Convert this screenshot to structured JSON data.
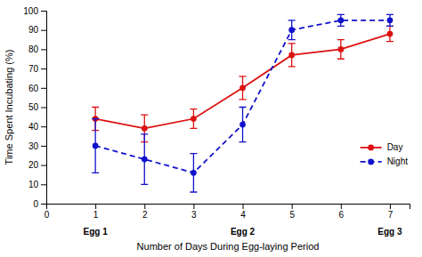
{
  "chart_data": {
    "type": "line",
    "x": [
      1,
      2,
      3,
      4,
      5,
      6,
      7
    ],
    "xlabel": "Number of Days During Egg-laying Period",
    "ylabel": "Time Spent Incubating (%)",
    "xlim": [
      0,
      7.4
    ],
    "ylim": [
      0,
      100
    ],
    "xticks": [
      0,
      1,
      2,
      3,
      4,
      5,
      6,
      7
    ],
    "yticks": [
      0,
      10,
      20,
      30,
      40,
      50,
      60,
      70,
      80,
      90,
      100
    ],
    "series": [
      {
        "name": "Day",
        "color": "#dd1111",
        "line_style": "solid",
        "marker": "circle",
        "values": [
          44,
          39,
          44,
          60,
          77,
          80,
          88
        ],
        "errors": [
          6,
          7,
          5,
          6,
          6,
          5,
          4
        ]
      },
      {
        "name": "Night",
        "color": "#1111cc",
        "line_style": "dashed",
        "marker": "circle",
        "values": [
          30,
          23,
          16,
          41,
          90,
          95,
          95
        ],
        "errors": [
          14,
          13,
          10,
          9,
          5,
          3,
          3
        ]
      }
    ],
    "legend": "lower right",
    "annotations": [
      {
        "text": "Egg 1",
        "x": 1
      },
      {
        "text": "Egg 2",
        "x": 4
      },
      {
        "text": "Egg 3",
        "x": 7
      }
    ]
  }
}
